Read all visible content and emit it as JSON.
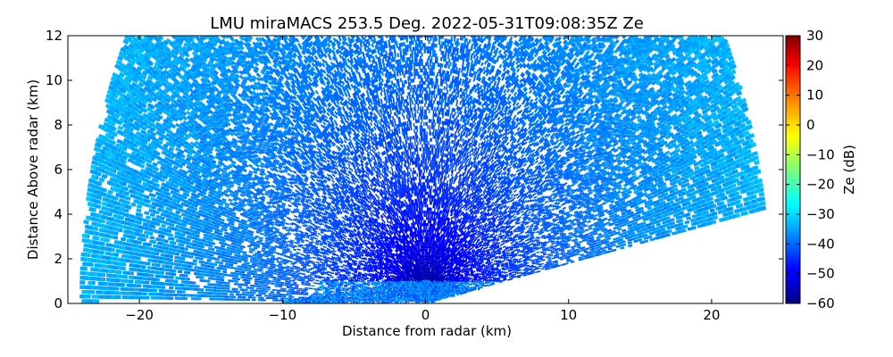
{
  "chart_data": {
    "type": "heatmap",
    "subtype": "radar-rhi-scan",
    "title": "LMU miraMACS 253.5 Deg. 2022-05-31T09:08:35Z  Ze",
    "xlabel": "Distance from radar (km)",
    "ylabel": "Distance Above radar  (km)",
    "xlim": [
      -25,
      25
    ],
    "ylim": [
      0,
      12
    ],
    "xticks": [
      -20,
      -10,
      0,
      10,
      20
    ],
    "yticks": [
      0,
      2,
      4,
      6,
      8,
      10,
      12
    ],
    "colorbar": {
      "label": "Ze (dB)",
      "range": [
        -60,
        30
      ],
      "ticks": [
        -60,
        -50,
        -40,
        -30,
        -20,
        -10,
        0,
        10,
        20,
        30
      ],
      "colormap": "jet"
    },
    "scan": {
      "max_range_km": 24,
      "elevation_start_deg": 10,
      "elevation_end_deg": 180,
      "noise_floor_dbz": -33,
      "near_surface_layer_top_km": 1.0,
      "near_surface_dbz": -38
    }
  }
}
